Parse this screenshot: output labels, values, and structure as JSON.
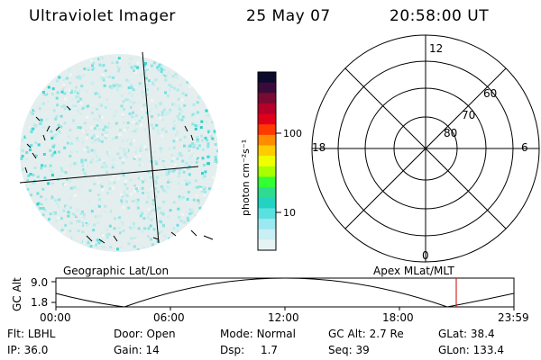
{
  "header": {
    "instrument": "Ultraviolet Imager",
    "date": "25 May 07",
    "time": "20:58:00 UT"
  },
  "colorbar": {
    "unit_label": "photon cm⁻²s⁻¹",
    "tick_labels": [
      "100",
      "10"
    ],
    "tick_values": [
      100,
      10
    ],
    "colors": [
      "#0b0b2e",
      "#3a0a3a",
      "#7a0a33",
      "#b5002a",
      "#e0001b",
      "#ff3a00",
      "#ff8c00",
      "#ffcc00",
      "#f0ff00",
      "#a8ff00",
      "#33ff33",
      "#2edc90",
      "#22d3c2",
      "#5be0e0",
      "#9ae8f0",
      "#c9eef4",
      "#e6f3f4"
    ]
  },
  "polar_plot": {
    "hour_labels": {
      "top": "12",
      "left": "18",
      "right": "6",
      "bottom": "0"
    },
    "lat_labels": [
      "60",
      "70",
      "80"
    ]
  },
  "timeline": {
    "left_label": "Geographic Lat/Lon",
    "right_label": "Apex MLat/MLT",
    "y_axis_title": "GC Alt",
    "y_ticks": [
      "9.0",
      "1.8"
    ],
    "x_ticks": [
      "00:00",
      "06:00",
      "12:00",
      "18:00",
      "23:59"
    ],
    "marker_time": "20:58",
    "marker_color": "#cc0000"
  },
  "info": {
    "row1": [
      {
        "label": "Flt:",
        "value": "LBHL"
      },
      {
        "label": "Door:",
        "value": "Open"
      },
      {
        "label": "Mode:",
        "value": "Normal"
      },
      {
        "label": "GC Alt:",
        "value": "2.7 Re"
      },
      {
        "label": "GLat:",
        "value": "38.4"
      }
    ],
    "row2": [
      {
        "label": "IP:",
        "value": "36.0"
      },
      {
        "label": "Gain:",
        "value": "14"
      },
      {
        "label": "Dsp:",
        "value": "1.7"
      },
      {
        "label": "Seq:",
        "value": "39"
      },
      {
        "label": "GLon:",
        "value": "133.4"
      }
    ]
  }
}
